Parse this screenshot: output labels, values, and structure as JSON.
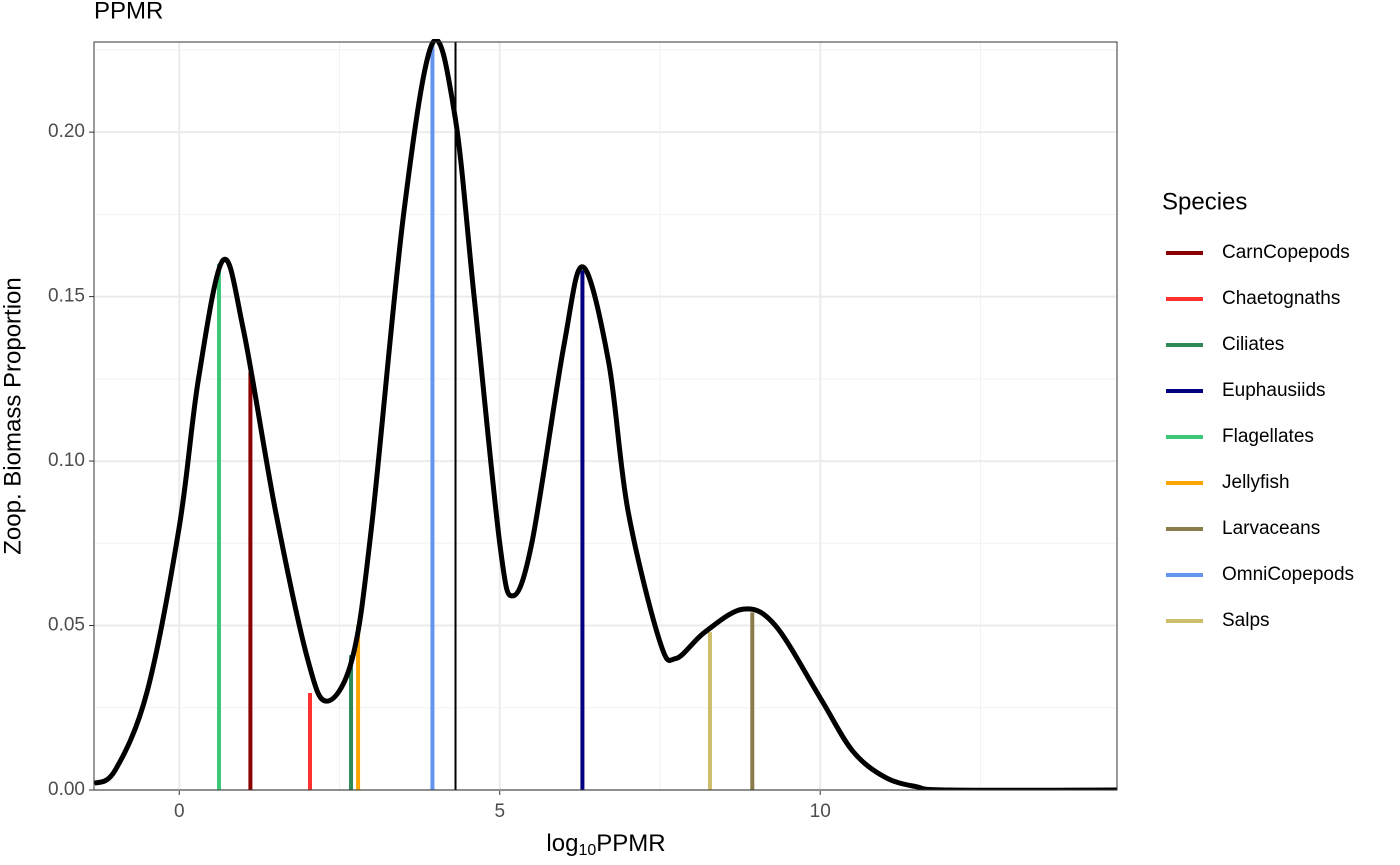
{
  "chart_data": {
    "type": "density-lines",
    "title": "PPMR",
    "x_label_parts": [
      "log",
      "10",
      "PPMR"
    ],
    "y_label": "Zoop. Biomass Proportion",
    "legend_title": "Species",
    "xlim": [
      -1.33,
      14.63
    ],
    "ylim": [
      0,
      0.2274
    ],
    "xticks": [
      0,
      5,
      10
    ],
    "minor_xticks": [
      2.5,
      7.5,
      12.5
    ],
    "yticks": [
      {
        "value": 0,
        "label": "0.00"
      },
      {
        "value": 0.05,
        "label": "0.05"
      },
      {
        "value": 0.1,
        "label": "0.10"
      },
      {
        "value": 0.15,
        "label": "0.15"
      },
      {
        "value": 0.2,
        "label": "0.20"
      }
    ],
    "minor_yticks": [
      0.025,
      0.075,
      0.125,
      0.175,
      0.225
    ],
    "grid": true,
    "curve": {
      "color": "#000000",
      "x": [
        -1.33,
        -1.0,
        -0.5,
        0,
        0.3,
        0.68,
        1.0,
        1.5,
        2.0,
        2.3,
        2.7,
        3.0,
        3.5,
        3.95,
        4.3,
        4.6,
        5.0,
        5.2,
        5.5,
        6.0,
        6.3,
        6.7,
        7.0,
        7.5,
        7.75,
        8.2,
        8.8,
        9.3,
        10.0,
        10.5,
        11.0,
        11.5,
        12.0,
        14.63
      ],
      "values": [
        0.002,
        0.006,
        0.03,
        0.08,
        0.125,
        0.161,
        0.14,
        0.085,
        0.04,
        0.027,
        0.04,
        0.08,
        0.175,
        0.227,
        0.205,
        0.15,
        0.075,
        0.059,
        0.075,
        0.135,
        0.159,
        0.13,
        0.085,
        0.045,
        0.04,
        0.048,
        0.055,
        0.05,
        0.028,
        0.012,
        0.004,
        0.001,
        0,
        0
      ]
    },
    "mean_line_x": 4.31,
    "series": [
      {
        "name": "CarnCopepods",
        "color": "#8b0000",
        "x": 1.11,
        "value": 0.127
      },
      {
        "name": "Chaetognaths",
        "color": "#ff3030",
        "x": 2.04,
        "value": 0.0295
      },
      {
        "name": "Ciliates",
        "color": "#2e8b57",
        "x": 2.68,
        "value": 0.041
      },
      {
        "name": "Euphausiids",
        "color": "#000080",
        "x": 6.29,
        "value": 0.158
      },
      {
        "name": "Flagellates",
        "color": "#3cc878",
        "x": 0.62,
        "value": 0.16
      },
      {
        "name": "Jellyfish",
        "color": "#ffa500",
        "x": 2.79,
        "value": 0.05
      },
      {
        "name": "Larvaceans",
        "color": "#8b7d4b",
        "x": 8.94,
        "value": 0.054
      },
      {
        "name": "OmniCopepods",
        "color": "#6495ed",
        "x": 3.95,
        "value": 0.227
      },
      {
        "name": "Salps",
        "color": "#cdbe6e",
        "x": 8.28,
        "value": 0.048
      }
    ]
  }
}
